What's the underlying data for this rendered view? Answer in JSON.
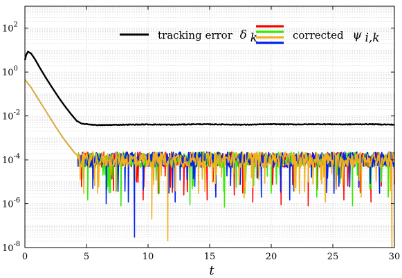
{
  "chart_data": {
    "type": "line",
    "xlabel": "t",
    "ylabel": "",
    "xlim": [
      0,
      30
    ],
    "ylim": [
      1e-08,
      1000
    ],
    "yscale": "log",
    "grid": true,
    "legend_placement": "top",
    "x_ticks": [
      0,
      5,
      10,
      15,
      20,
      25,
      30
    ],
    "x_tick_labels": [
      "0",
      "5",
      "10",
      "15",
      "20",
      "25",
      "30"
    ],
    "y_ticks": [
      1e-08,
      1e-06,
      0.0001,
      0.01,
      1,
      100
    ],
    "y_tick_labels": [
      {
        "base": "10",
        "exp": "-8"
      },
      {
        "base": "10",
        "exp": "-6"
      },
      {
        "base": "10",
        "exp": "-4"
      },
      {
        "base": "10",
        "exp": "-2"
      },
      {
        "base": "10",
        "exp": "0"
      },
      {
        "base": "10",
        "exp": "2"
      }
    ],
    "legend": [
      {
        "text": "tracking error",
        "math": "δ",
        "sub": "k",
        "color": "#000000"
      },
      {
        "text": "corrected",
        "math": "ψ",
        "sub": "i,k",
        "colors": [
          "#ff0000",
          "#33ee00",
          "#f0b020",
          "#0022ee"
        ]
      }
    ],
    "series": [
      {
        "key": "tracking",
        "color": "#000000",
        "x": [
          0,
          0.1,
          0.25,
          0.5,
          0.8,
          1.2,
          1.7,
          2.2,
          2.7,
          3.2,
          3.7,
          4.2,
          4.6,
          5,
          6,
          8,
          10,
          12,
          14,
          16,
          18,
          20,
          22,
          24,
          26,
          28,
          30
        ],
        "y": [
          3.5,
          6,
          8.5,
          7,
          4,
          1.6,
          0.55,
          0.2,
          0.075,
          0.03,
          0.013,
          0.006,
          0.0045,
          0.0042,
          0.0038,
          0.004,
          0.0041,
          0.004,
          0.0042,
          0.0041,
          0.004,
          0.0042,
          0.0041,
          0.0042,
          0.0041,
          0.0042,
          0.004
        ]
      },
      {
        "key": "corrected",
        "colors": [
          "#ff0000",
          "#33ee00",
          "#0022ee",
          "#f0b020"
        ],
        "decay_x": [
          0,
          0.5,
          1,
          1.5,
          2,
          2.5,
          3,
          3.5,
          4,
          4.3
        ],
        "decay_y": [
          0.45,
          0.2,
          0.07,
          0.025,
          0.009,
          0.0032,
          0.0012,
          0.0005,
          0.00022,
          0.00015
        ],
        "noise_band": [
          4.5e-05,
          0.00023
        ],
        "dips": [
          {
            "x": 4.6,
            "y": 6e-06,
            "series": 0
          },
          {
            "x": 5.1,
            "y": 1.5e-06,
            "series": 1
          },
          {
            "x": 5.9,
            "y": 3e-06,
            "series": 3
          },
          {
            "x": 6.6,
            "y": 1e-06,
            "series": 2
          },
          {
            "x": 7.2,
            "y": 4e-06,
            "series": 0
          },
          {
            "x": 7.8,
            "y": 8e-07,
            "series": 1
          },
          {
            "x": 8.4,
            "y": 1.2e-06,
            "series": 2
          },
          {
            "x": 8.9,
            "y": 3e-08,
            "series": 2
          },
          {
            "x": 9.6,
            "y": 1.5e-06,
            "series": 0
          },
          {
            "x": 10.3,
            "y": 2e-07,
            "series": 3
          },
          {
            "x": 10.9,
            "y": 3e-06,
            "series": 1
          },
          {
            "x": 11.6,
            "y": 2e-08,
            "series": 3
          },
          {
            "x": 12.2,
            "y": 1.2e-06,
            "series": 2
          },
          {
            "x": 12.9,
            "y": 2.5e-06,
            "series": 0
          },
          {
            "x": 13.4,
            "y": 9e-07,
            "series": 1
          },
          {
            "x": 14.1,
            "y": 3e-06,
            "series": 3
          },
          {
            "x": 14.8,
            "y": 1.5e-06,
            "series": 0
          },
          {
            "x": 15.5,
            "y": 2e-06,
            "series": 2
          },
          {
            "x": 16.2,
            "y": 7e-07,
            "series": 1
          },
          {
            "x": 17.0,
            "y": 2.5e-06,
            "series": 0
          },
          {
            "x": 17.8,
            "y": 1.8e-06,
            "series": 3
          },
          {
            "x": 18.5,
            "y": 1.2e-06,
            "series": 0
          },
          {
            "x": 19.2,
            "y": 2e-06,
            "series": 2
          },
          {
            "x": 20.0,
            "y": 3e-06,
            "series": 1
          },
          {
            "x": 20.8,
            "y": 9e-07,
            "series": 0
          },
          {
            "x": 21.5,
            "y": 1.5e-06,
            "series": 2
          },
          {
            "x": 22.3,
            "y": 3e-06,
            "series": 3
          },
          {
            "x": 23.0,
            "y": 8e-07,
            "series": 0
          },
          {
            "x": 23.7,
            "y": 2e-06,
            "series": 1
          },
          {
            "x": 24.4,
            "y": 1.2e-06,
            "series": 3
          },
          {
            "x": 25.1,
            "y": 3e-06,
            "series": 2
          },
          {
            "x": 25.9,
            "y": 1.5e-06,
            "series": 0
          },
          {
            "x": 26.6,
            "y": 8e-07,
            "series": 1
          },
          {
            "x": 27.3,
            "y": 2e-06,
            "series": 3
          },
          {
            "x": 28.1,
            "y": 1.2e-06,
            "series": 0
          },
          {
            "x": 28.8,
            "y": 3e-06,
            "series": 2
          },
          {
            "x": 29.5,
            "y": 2e-06,
            "series": 1
          },
          {
            "x": 29.8,
            "y": 1e-08,
            "series": 3
          }
        ]
      }
    ]
  }
}
